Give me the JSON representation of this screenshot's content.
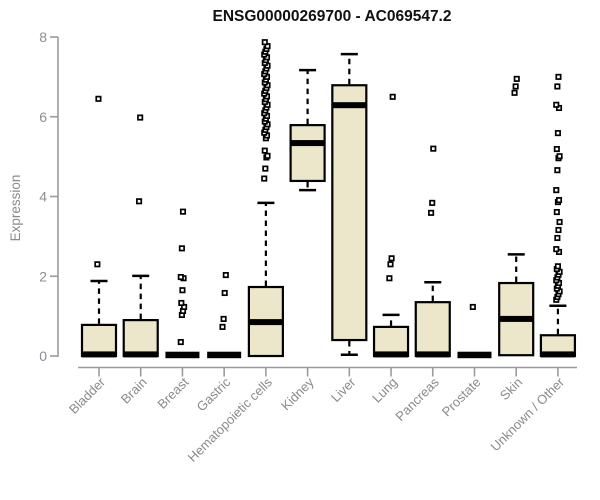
{
  "title": "ENSG00000269700 - AC069547.2",
  "colors": {
    "box_fill": "#ece7cb",
    "box_stroke": "#000000",
    "median": "#000000",
    "whisker": "#000000",
    "outlier_fill": "#ffffff",
    "outlier_stroke": "#000000",
    "axis": "#9b9b9b",
    "tick_label": "#8b8e96",
    "category_label": "#8a8a8a",
    "title_color": "#111111",
    "background": "#ffffff"
  },
  "chart_data": {
    "type": "boxplot",
    "title": "ENSG00000269700 - AC069547.2",
    "xlabel": "",
    "ylabel": "Expression",
    "ylim": [
      0,
      8
    ],
    "y_ticks": [
      0,
      2,
      4,
      6,
      8
    ],
    "grid": false,
    "legend": "none",
    "categories": [
      "Bladder",
      "Brain",
      "Breast",
      "Gastric",
      "Hematopoietic cells",
      "Kidney",
      "Liver",
      "Lung",
      "Pancreas",
      "Prostate",
      "Skin",
      "Unknown / Other"
    ],
    "series": [
      {
        "name": "Bladder",
        "q1": 0,
        "median": 0.04,
        "q3": 0.78,
        "whisker_low": 0,
        "whisker_high": 1.88,
        "outliers": [
          2.3,
          6.45
        ]
      },
      {
        "name": "Brain",
        "q1": 0,
        "median": 0.04,
        "q3": 0.9,
        "whisker_low": 0,
        "whisker_high": 2.01,
        "outliers": [
          3.88,
          5.98
        ]
      },
      {
        "name": "Breast",
        "q1": 0,
        "median": 0.02,
        "q3": 0,
        "whisker_low": 0,
        "whisker_high": 0,
        "outliers": [
          0.35,
          1.03,
          1.13,
          1.23,
          1.33,
          1.65,
          1.95,
          1.98,
          2.7,
          3.62
        ]
      },
      {
        "name": "Gastric",
        "q1": 0,
        "median": 0.02,
        "q3": 0,
        "whisker_low": 0,
        "whisker_high": 0,
        "outliers": [
          0.73,
          0.93,
          1.58,
          2.03
        ]
      },
      {
        "name": "Hematopoietic cells",
        "q1": 0,
        "median": 0.85,
        "q3": 1.73,
        "whisker_low": 0,
        "whisker_high": 3.84,
        "outliers": [
          4.45,
          4.7,
          4.98,
          5.02,
          5.15,
          5.46,
          5.53,
          5.6,
          5.67,
          5.74,
          5.81,
          5.88,
          5.95,
          6.02,
          6.09,
          6.16,
          6.23,
          6.3,
          6.37,
          6.44,
          6.51,
          6.58,
          6.65,
          6.72,
          6.79,
          6.86,
          6.93,
          7.0,
          7.07,
          7.14,
          7.21,
          7.28,
          7.35,
          7.42,
          7.49,
          7.56,
          7.63,
          7.7,
          7.77,
          7.87
        ]
      },
      {
        "name": "Kidney",
        "q1": 4.39,
        "median": 5.34,
        "q3": 5.79,
        "whisker_low": 4.16,
        "whisker_high": 7.17,
        "outliers": []
      },
      {
        "name": "Liver",
        "q1": 0.4,
        "median": 6.29,
        "q3": 6.79,
        "whisker_low": 0.03,
        "whisker_high": 7.57,
        "outliers": []
      },
      {
        "name": "Lung",
        "q1": 0,
        "median": 0.04,
        "q3": 0.73,
        "whisker_low": 0,
        "whisker_high": 1.03,
        "outliers": [
          1.95,
          2.3,
          2.45,
          6.5
        ]
      },
      {
        "name": "Pancreas",
        "q1": 0,
        "median": 0.04,
        "q3": 1.35,
        "whisker_low": 0,
        "whisker_high": 1.85,
        "outliers": [
          3.59,
          3.84,
          5.2
        ]
      },
      {
        "name": "Prostate",
        "q1": 0,
        "median": 0.02,
        "q3": 0,
        "whisker_low": 0,
        "whisker_high": 0,
        "outliers": [
          1.23
        ]
      },
      {
        "name": "Skin",
        "q1": 0.02,
        "median": 0.93,
        "q3": 1.83,
        "whisker_low": 0.02,
        "whisker_high": 2.55,
        "outliers": [
          6.6,
          6.76,
          6.95
        ]
      },
      {
        "name": "Unknown / Other",
        "q1": 0,
        "median": 0.04,
        "q3": 0.52,
        "whisker_low": 0,
        "whisker_high": 1.26,
        "outliers": [
          1.41,
          1.48,
          1.55,
          1.62,
          1.69,
          1.76,
          1.83,
          1.9,
          1.97,
          2.04,
          2.11,
          2.18,
          2.25,
          2.61,
          2.68,
          2.96,
          3.16,
          3.36,
          3.61,
          3.86,
          3.91,
          4.16,
          4.66,
          4.96,
          5.01,
          5.19,
          5.59,
          6.22,
          6.3,
          6.76,
          7.0
        ]
      }
    ]
  }
}
